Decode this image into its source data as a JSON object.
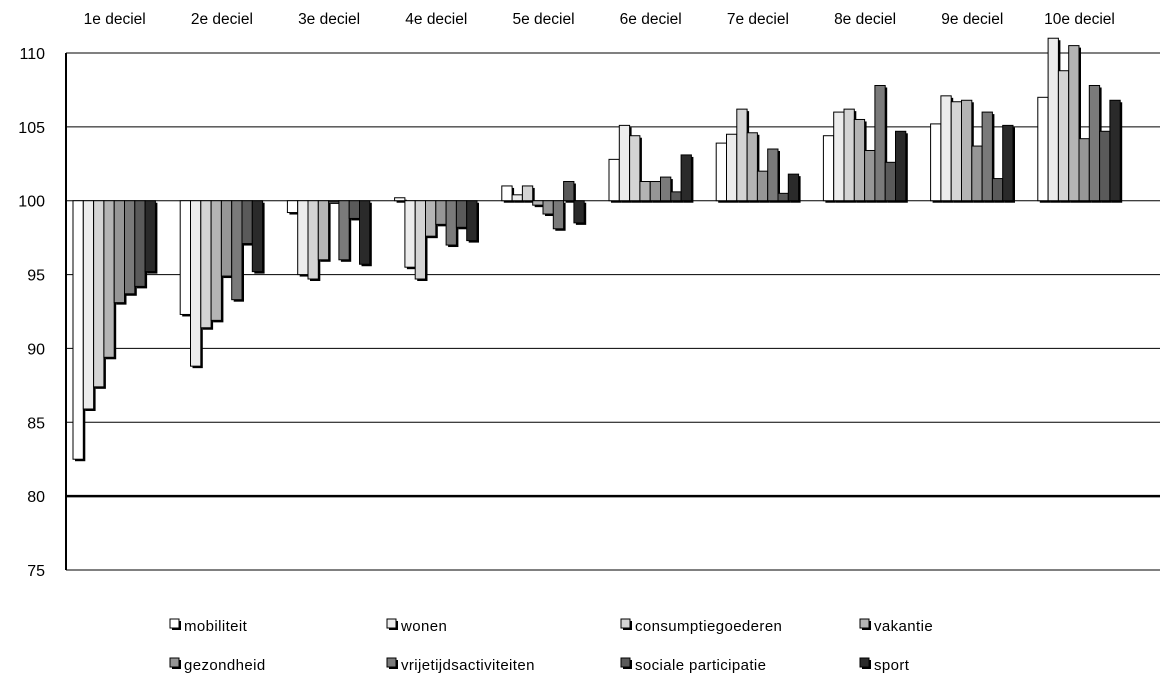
{
  "chart_data": {
    "type": "bar",
    "categories": [
      "1e deciel",
      "2e deciel",
      "3e deciel",
      "4e deciel",
      "5e deciel",
      "6e deciel",
      "7e deciel",
      "8e deciel",
      "9e deciel",
      "10e deciel"
    ],
    "baseline": 100,
    "ylim": [
      75,
      110
    ],
    "yticks": [
      75,
      80,
      85,
      90,
      95,
      100,
      105,
      110
    ],
    "grid": true,
    "legend_position": "bottom",
    "series": [
      {
        "name": "mobiliteit",
        "color": "#ffffff",
        "values": [
          82.5,
          92.3,
          99.2,
          100.2,
          101.0,
          102.8,
          103.9,
          104.4,
          105.2,
          107.0
        ]
      },
      {
        "name": "wonen",
        "color": "#ececec",
        "values": [
          85.9,
          88.8,
          95.0,
          95.5,
          100.4,
          105.1,
          104.5,
          106.0,
          107.1,
          111.0
        ]
      },
      {
        "name": "consumptiegoederen",
        "color": "#d4d4d4",
        "values": [
          87.4,
          91.4,
          94.7,
          94.7,
          101.0,
          104.4,
          106.2,
          106.2,
          106.7,
          108.8
        ]
      },
      {
        "name": "vakantie",
        "color": "#b4b4b4",
        "values": [
          89.4,
          91.9,
          96.0,
          97.6,
          99.7,
          101.3,
          104.6,
          105.5,
          106.8,
          110.5
        ]
      },
      {
        "name": "gezondheid",
        "color": "#969696",
        "values": [
          93.1,
          94.9,
          100.0,
          98.4,
          99.1,
          101.3,
          102.0,
          103.4,
          103.7,
          104.2
        ]
      },
      {
        "name": "vrijetijdsactiviteiten",
        "color": "#7a7a7a",
        "values": [
          93.7,
          93.3,
          96.0,
          97.0,
          98.1,
          101.6,
          103.5,
          107.8,
          106.0,
          107.8
        ]
      },
      {
        "name": "sociale participatie",
        "color": "#5a5a5a",
        "values": [
          94.2,
          97.1,
          98.8,
          98.2,
          101.3,
          100.6,
          100.5,
          102.6,
          101.5,
          104.7
        ]
      },
      {
        "name": "sport",
        "color": "#2a2a2a",
        "values": [
          95.2,
          95.2,
          95.7,
          97.3,
          98.5,
          103.1,
          101.8,
          104.7,
          105.1,
          106.8
        ]
      }
    ]
  }
}
